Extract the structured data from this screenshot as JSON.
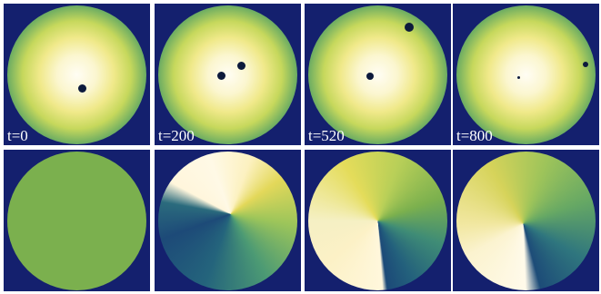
{
  "panels": [
    {
      "label": "t=0"
    },
    {
      "label": "t=200"
    },
    {
      "label": "t=520"
    },
    {
      "label": "t=800"
    }
  ]
}
